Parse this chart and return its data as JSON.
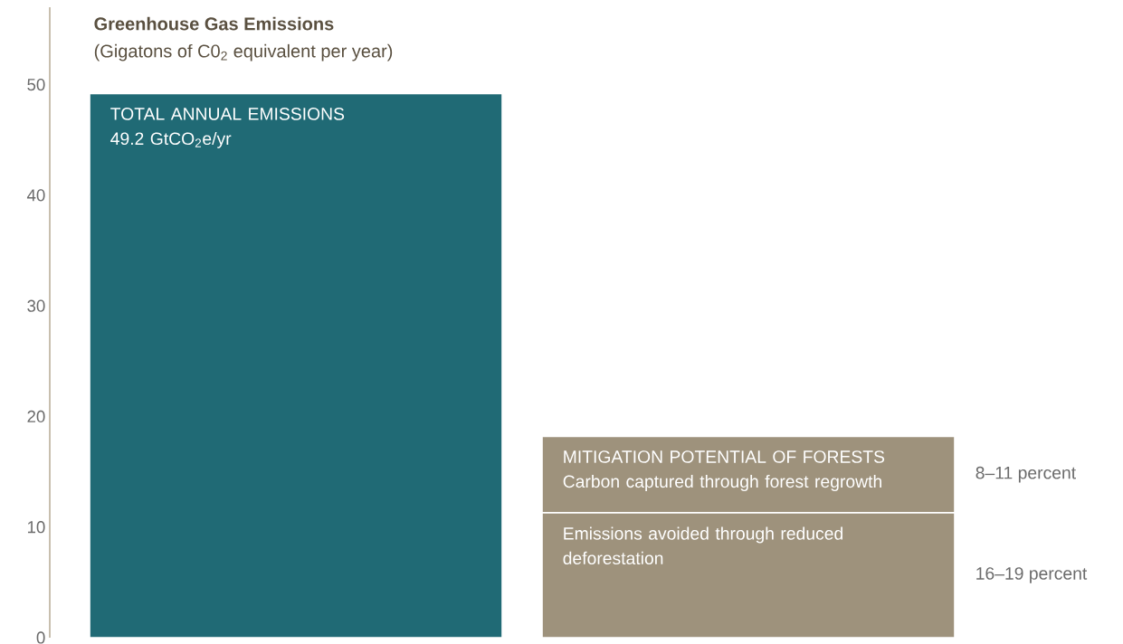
{
  "chart_data": {
    "type": "bar",
    "stacked": true,
    "title": "Greenhouse Gas Emissions",
    "subtitle": "(Gigatons of C0$_{2}$ equivalent per year)",
    "categories": [
      null,
      null
    ],
    "series": [
      {
        "name": "TOTAL ANNUAL EMISSIONS",
        "color": "#206a75",
        "values": [
          49.2,
          null
        ],
        "value_labels": [
          "49.2 GtCO$_{2}$e/yr",
          null
        ]
      },
      {
        "name": "Emissions avoided through reduced deforestation",
        "color": "#9e927c",
        "values": [
          null,
          11.3
        ]
      },
      {
        "name": "Carbon captured through forest regrowth",
        "color": "#9e927c",
        "values": [
          null,
          6.9
        ]
      }
    ],
    "annotations": [
      "MITIGATION POTENTIAL OF FORESTS",
      "8–11 percent",
      "16–19 percent"
    ],
    "ylim": [
      0,
      57
    ],
    "yticks": [
      0,
      10,
      20,
      30,
      40,
      50
    ]
  }
}
